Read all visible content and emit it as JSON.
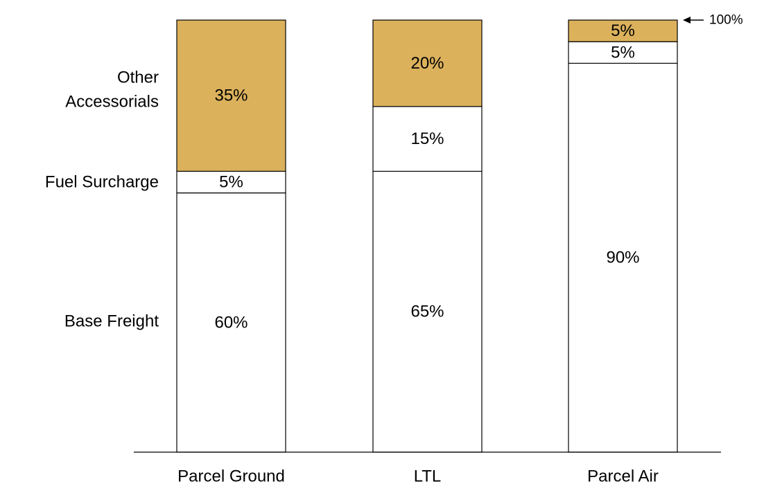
{
  "chart_data": {
    "type": "bar",
    "stacked": true,
    "categories": [
      "Parcel Ground",
      "LTL",
      "Parcel Air"
    ],
    "series": [
      {
        "name": "Base Freight",
        "values": [
          60,
          65,
          90
        ],
        "labels": [
          "60%",
          "65%",
          "90%"
        ],
        "color": "#ffffff"
      },
      {
        "name": "Fuel Surcharge",
        "values": [
          5,
          15,
          5
        ],
        "labels": [
          "5%",
          "15%",
          "5%"
        ],
        "color": "#ffffff"
      },
      {
        "name": "Other\nAccessorials",
        "values": [
          35,
          20,
          5
        ],
        "labels": [
          "35%",
          "20%",
          "5%"
        ],
        "color": "#dbb15c"
      }
    ],
    "ylim": [
      0,
      100
    ],
    "grid": false,
    "legend": "left",
    "annotation": {
      "text": "100%",
      "value": 100,
      "category": "Parcel Air"
    },
    "stroke_color": "#000000"
  }
}
